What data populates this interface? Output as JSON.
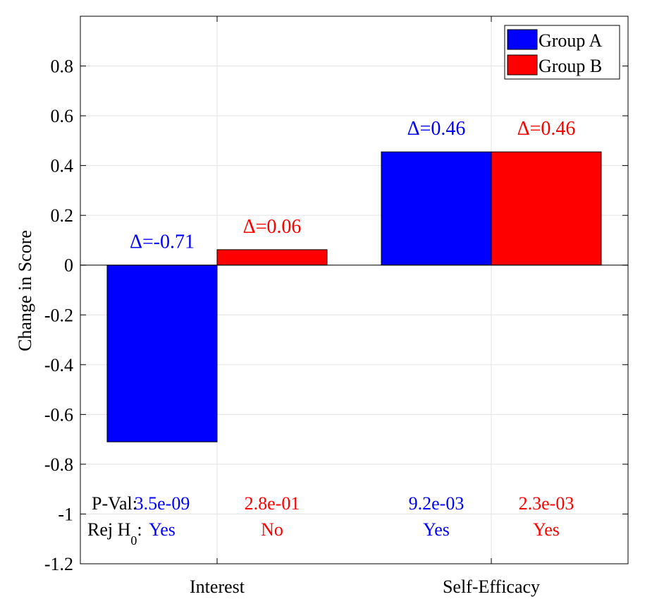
{
  "chart_data": {
    "type": "bar",
    "title": "",
    "xlabel": "",
    "ylabel": "Change in Score",
    "ylim": [
      -1.2,
      1.0
    ],
    "yticks": [
      0.8,
      0.6,
      0.4,
      0.2,
      0,
      -0.2,
      -0.4,
      -0.6,
      -0.8,
      -1,
      -1.2
    ],
    "ytick_labels": [
      "0.8",
      "0.6",
      "0.4",
      "0.2",
      "0",
      "-0.2",
      "-0.4",
      "-0.6",
      "-0.8",
      "-1",
      "-1.2"
    ],
    "grid": true,
    "legend_position": "top-right",
    "categories": [
      "Interest",
      "Self-Efficacy"
    ],
    "series": [
      {
        "name": "Group A",
        "color": "#0000ff",
        "values": [
          -0.71,
          0.455
        ],
        "delta_labels": [
          "Δ=-0.71",
          "Δ=0.46"
        ],
        "pvals": [
          "3.5e-09",
          "9.2e-03"
        ],
        "reject": [
          "Yes",
          "Yes"
        ]
      },
      {
        "name": "Group B",
        "color": "#ff0000",
        "values": [
          0.062,
          0.455
        ],
        "delta_labels": [
          "Δ=0.06",
          "Δ=0.46"
        ],
        "pvals": [
          "2.8e-01",
          "2.3e-03"
        ],
        "reject": [
          "No",
          "Yes"
        ]
      }
    ],
    "annotations": {
      "pval_label": "P-Val:",
      "rej_label_main": "Rej H",
      "rej_label_sub": "0",
      "rej_label_colon": ":"
    }
  }
}
